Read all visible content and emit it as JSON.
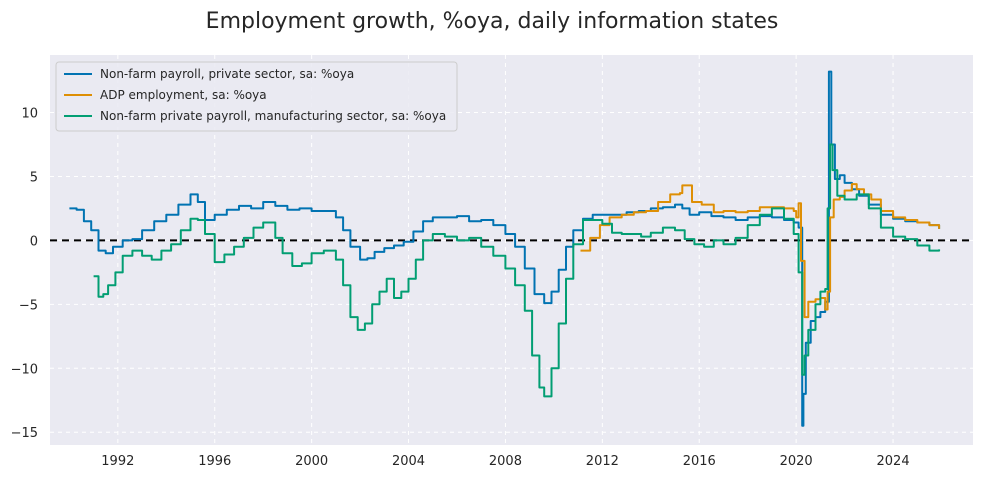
{
  "chart_data": {
    "type": "line",
    "title": "Employment growth, %oya, daily information states",
    "xlabel": "",
    "ylabel": "",
    "xlim": [
      1989.2,
      2027.3
    ],
    "ylim": [
      -16,
      14.5
    ],
    "xticks": [
      1992,
      1996,
      2000,
      2004,
      2008,
      2012,
      2016,
      2020,
      2024
    ],
    "yticks": [
      -15,
      -10,
      -5,
      0,
      5,
      10
    ],
    "xtick_labels": [
      "1992",
      "1996",
      "2000",
      "2004",
      "2008",
      "2012",
      "2016",
      "2020",
      "2024"
    ],
    "ytick_labels": [
      "−15",
      "−10",
      "−5",
      "0",
      "5",
      "10"
    ],
    "grid": true,
    "legend_position": "top-left",
    "reference_line": {
      "y": 0,
      "style": "dashed",
      "color": "#000000"
    },
    "colors": {
      "background": "#eaeaf2",
      "grid": "#ffffff"
    },
    "series": [
      {
        "name": "Non-farm payroll, private sector, sa: %oya",
        "color": "#0173b2",
        "x": [
          1990.0,
          1990.3,
          1990.6,
          1990.9,
          1991.2,
          1991.5,
          1991.8,
          1992.2,
          1992.6,
          1993.0,
          1993.5,
          1994.0,
          1994.5,
          1995.0,
          1995.3,
          1995.6,
          1996.0,
          1996.5,
          1997.0,
          1997.5,
          1998.0,
          1998.5,
          1999.0,
          1999.5,
          2000.0,
          2000.5,
          2001.0,
          2001.3,
          2001.6,
          2002.0,
          2002.3,
          2002.6,
          2003.0,
          2003.4,
          2003.8,
          2004.2,
          2004.6,
          2005.0,
          2005.5,
          2006.0,
          2006.5,
          2007.0,
          2007.5,
          2008.0,
          2008.4,
          2008.8,
          2009.2,
          2009.6,
          2009.9,
          2010.2,
          2010.5,
          2010.8,
          2011.2,
          2011.6,
          2012.0,
          2012.5,
          2013.0,
          2013.5,
          2014.0,
          2014.5,
          2015.0,
          2015.3,
          2015.6,
          2016.0,
          2016.5,
          2017.0,
          2017.5,
          2018.0,
          2018.5,
          2019.0,
          2019.5,
          2019.9,
          2020.1,
          2020.25,
          2020.3,
          2020.4,
          2020.6,
          2020.8,
          2021.0,
          2021.2,
          2021.35,
          2021.45,
          2021.6,
          2021.8,
          2022.0,
          2022.3,
          2022.6,
          2023.0,
          2023.5,
          2024.0,
          2024.5,
          2025.0,
          2025.5,
          2025.9
        ],
        "y": [
          2.5,
          2.4,
          1.5,
          0.8,
          -0.8,
          -1.0,
          -0.5,
          0.0,
          0.1,
          0.8,
          1.5,
          2.0,
          2.8,
          3.6,
          3.0,
          1.6,
          2.0,
          2.4,
          2.7,
          2.5,
          3.0,
          2.7,
          2.4,
          2.5,
          2.3,
          2.3,
          1.8,
          0.8,
          -0.5,
          -1.5,
          -1.4,
          -0.9,
          -0.6,
          -0.4,
          -0.1,
          0.7,
          1.5,
          1.8,
          1.8,
          1.9,
          1.5,
          1.6,
          1.2,
          0.5,
          -0.5,
          -2.2,
          -4.2,
          -4.9,
          -4.0,
          -2.3,
          -0.5,
          0.8,
          1.7,
          2.0,
          2.0,
          2.0,
          2.2,
          2.3,
          2.5,
          2.6,
          2.8,
          2.5,
          2.0,
          2.2,
          1.9,
          1.8,
          1.6,
          1.8,
          1.9,
          1.8,
          1.6,
          1.4,
          1.0,
          -14.5,
          -12.0,
          -8.0,
          -6.3,
          -6.0,
          -5.6,
          -4.8,
          13.2,
          7.5,
          4.8,
          5.1,
          4.5,
          4.0,
          3.5,
          2.8,
          2.0,
          1.7,
          1.5,
          1.4,
          1.2,
          0.9
        ]
      },
      {
        "name": "ADP employment, sa: %oya",
        "color": "#de8f05",
        "x": [
          2011.1,
          2011.5,
          2011.9,
          2012.3,
          2012.8,
          2013.3,
          2013.8,
          2014.3,
          2014.8,
          2015.2,
          2015.3,
          2015.7,
          2016.1,
          2016.6,
          2017.0,
          2017.5,
          2018.0,
          2018.5,
          2019.0,
          2019.5,
          2019.9,
          2020.0,
          2020.1,
          2020.2,
          2020.35,
          2020.5,
          2020.8,
          2021.0,
          2021.2,
          2021.3,
          2021.4,
          2021.55,
          2021.8,
          2022.0,
          2022.3,
          2022.5,
          2022.8,
          2023.1,
          2023.5,
          2024.0,
          2024.5,
          2025.0,
          2025.5,
          2025.9
        ],
        "y": [
          -0.8,
          0.2,
          1.2,
          1.8,
          2.0,
          2.2,
          2.3,
          3.0,
          3.6,
          3.7,
          4.3,
          3.0,
          2.8,
          2.2,
          2.3,
          2.2,
          2.3,
          2.6,
          2.6,
          2.5,
          2.3,
          1.8,
          2.9,
          -1.6,
          -6.0,
          -4.8,
          -4.6,
          -4.5,
          -5.4,
          -4.0,
          1.8,
          3.2,
          3.4,
          3.9,
          4.4,
          4.0,
          3.6,
          3.2,
          2.3,
          1.8,
          1.6,
          1.4,
          1.2,
          0.9
        ]
      },
      {
        "name": "Non-farm private payroll, manufacturing sector, sa: %oya",
        "color": "#029e73",
        "x": [
          1991.0,
          1991.2,
          1991.4,
          1991.6,
          1991.9,
          1992.2,
          1992.6,
          1993.0,
          1993.4,
          1993.8,
          1994.2,
          1994.6,
          1995.0,
          1995.3,
          1995.6,
          1996.0,
          1996.4,
          1996.8,
          1997.2,
          1997.6,
          1998.0,
          1998.5,
          1998.8,
          1999.2,
          1999.6,
          2000.0,
          2000.5,
          2001.0,
          2001.3,
          2001.6,
          2001.9,
          2002.2,
          2002.5,
          2002.8,
          2003.1,
          2003.4,
          2003.7,
          2004.0,
          2004.3,
          2004.6,
          2005.0,
          2005.5,
          2006.0,
          2006.5,
          2007.0,
          2007.5,
          2008.0,
          2008.4,
          2008.8,
          2009.1,
          2009.4,
          2009.6,
          2009.9,
          2010.2,
          2010.5,
          2010.8,
          2011.2,
          2011.6,
          2012.0,
          2012.4,
          2012.8,
          2013.2,
          2013.6,
          2014.0,
          2014.5,
          2015.0,
          2015.4,
          2015.8,
          2016.2,
          2016.6,
          2017.0,
          2017.5,
          2018.0,
          2018.5,
          2019.0,
          2019.5,
          2019.9,
          2020.1,
          2020.25,
          2020.35,
          2020.5,
          2020.8,
          2021.0,
          2021.2,
          2021.3,
          2021.4,
          2021.5,
          2021.7,
          2022.0,
          2022.5,
          2023.0,
          2023.5,
          2024.0,
          2024.5,
          2025.0,
          2025.5,
          2025.9
        ],
        "y": [
          -2.8,
          -4.4,
          -4.2,
          -3.5,
          -2.5,
          -1.2,
          -0.8,
          -1.2,
          -1.5,
          -0.8,
          -0.3,
          0.8,
          1.7,
          1.6,
          0.5,
          -1.7,
          -1.1,
          -0.5,
          0.2,
          1.0,
          1.4,
          0.2,
          -1.0,
          -2.0,
          -1.8,
          -1.0,
          -0.8,
          -1.5,
          -3.5,
          -6.0,
          -7.0,
          -6.5,
          -5.0,
          -4.0,
          -3.0,
          -4.5,
          -4.0,
          -3.0,
          -1.5,
          0.0,
          0.5,
          0.3,
          0.0,
          0.2,
          -0.5,
          -1.2,
          -2.2,
          -3.5,
          -5.5,
          -9.0,
          -11.5,
          -12.2,
          -10.0,
          -6.5,
          -3.0,
          -0.3,
          1.6,
          1.6,
          1.3,
          0.6,
          0.5,
          0.5,
          0.3,
          0.6,
          1.0,
          0.8,
          0.1,
          -0.3,
          -0.5,
          0.0,
          -0.3,
          0.2,
          1.2,
          2.0,
          2.5,
          1.7,
          0.5,
          -2.5,
          -10.5,
          -9.0,
          -7.0,
          -5.0,
          -4.0,
          -3.8,
          2.5,
          7.5,
          5.5,
          3.5,
          3.2,
          3.6,
          2.5,
          1.0,
          0.3,
          0.1,
          -0.4,
          -0.8,
          -0.7
        ]
      }
    ]
  }
}
